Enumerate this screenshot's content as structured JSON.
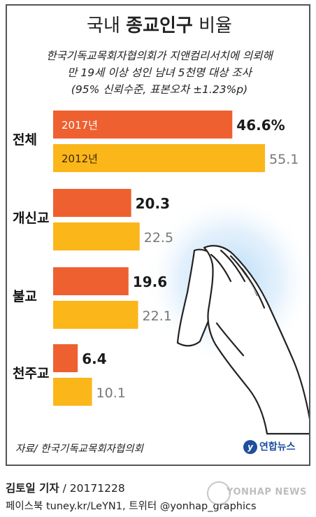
{
  "title_prefix": "국내",
  "title_strong": "종교인구",
  "title_suffix": "비율",
  "subtitle_lines": [
    "한국기독교목회자협의회가 지앤컴리서치에 의뢰해",
    "만 19세 이상 성인 남녀 5천명 대상 조사",
    "(95% 신뢰수준, 표본오차 ±1.23%p)"
  ],
  "colors": {
    "orange": "#ee6030",
    "yellow": "#fbb61a",
    "label_dark": "#1a1a1a",
    "label_gray": "#777777"
  },
  "chart_data": {
    "type": "bar",
    "orientation": "horizontal",
    "categories": [
      "전체",
      "개신교",
      "불교",
      "천주교"
    ],
    "series": [
      {
        "name": "2017년",
        "values": [
          46.6,
          20.3,
          19.6,
          6.4
        ]
      },
      {
        "name": "2012년",
        "values": [
          55.1,
          22.5,
          22.1,
          10.1
        ]
      }
    ],
    "value_labels": [
      [
        "46.6%",
        "20.3",
        "19.6",
        "6.4"
      ],
      [
        "55.1",
        "22.5",
        "22.1",
        "10.1"
      ]
    ],
    "unit": "%",
    "grid": false,
    "legend": "inside first bars"
  },
  "source": "자료/ 한국기독교목회자협의회",
  "logo_text": "연합뉴스",
  "credit_name": "김토일 기자",
  "credit_date": "/ 20171228",
  "social": "페이스북 tuney.kr/LeYN1, 트위터 @yonhap_graphics",
  "watermark": "YONHAP NEWS",
  "illustration": "praying-hands"
}
